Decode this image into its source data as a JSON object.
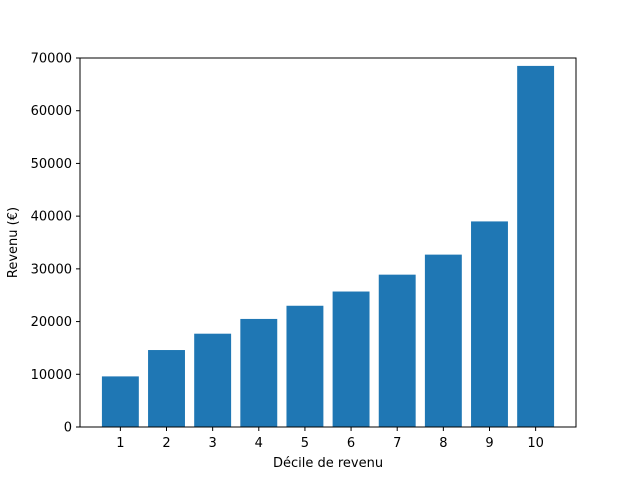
{
  "chart_data": {
    "type": "bar",
    "title": "",
    "xlabel": "Décile de revenu",
    "ylabel": "Revenu (€)",
    "categories": [
      "1",
      "2",
      "3",
      "4",
      "5",
      "6",
      "7",
      "8",
      "9",
      "10"
    ],
    "values": [
      9600,
      14600,
      17700,
      20500,
      23000,
      25700,
      28900,
      32700,
      39000,
      68500
    ],
    "ylim": [
      0,
      70000
    ],
    "yticks": [
      0,
      10000,
      20000,
      30000,
      40000,
      50000,
      60000,
      70000
    ],
    "grid": false,
    "legend": "none",
    "bar_color": "#1f77b4"
  }
}
